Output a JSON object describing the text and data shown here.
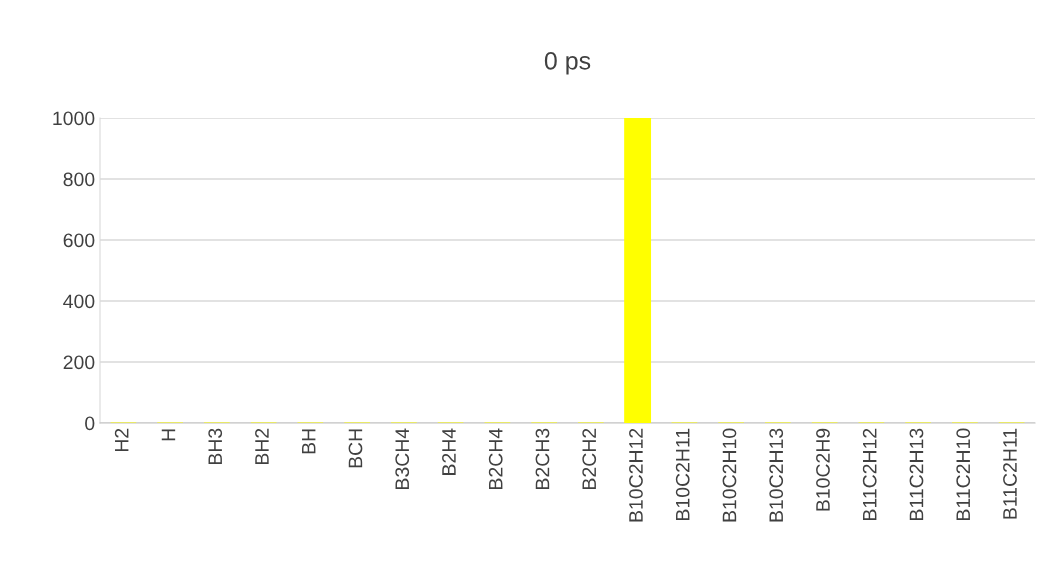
{
  "chart_data": {
    "type": "bar",
    "title": "0 ps",
    "categories": [
      "H2",
      "H",
      "BH3",
      "BH2",
      "BH",
      "BCH",
      "B3CH4",
      "B2H4",
      "B2CH4",
      "B2CH3",
      "B2CH2",
      "B10C2H12",
      "B10C2H11",
      "B10C2H10",
      "B10C2H13",
      "B10C2H9",
      "B11C2H12",
      "B11C2H13",
      "B11C2H10",
      "B11C2H11"
    ],
    "values": [
      0,
      0,
      0,
      0,
      0,
      0,
      0,
      0,
      0,
      0,
      0,
      1000,
      0,
      0,
      0,
      0,
      0,
      0,
      0,
      0
    ],
    "color": "#ffff00",
    "ylim": [
      0,
      1000
    ],
    "yticks": [
      0,
      200,
      400,
      600,
      800,
      1000
    ],
    "grid": "y",
    "legend": false
  }
}
